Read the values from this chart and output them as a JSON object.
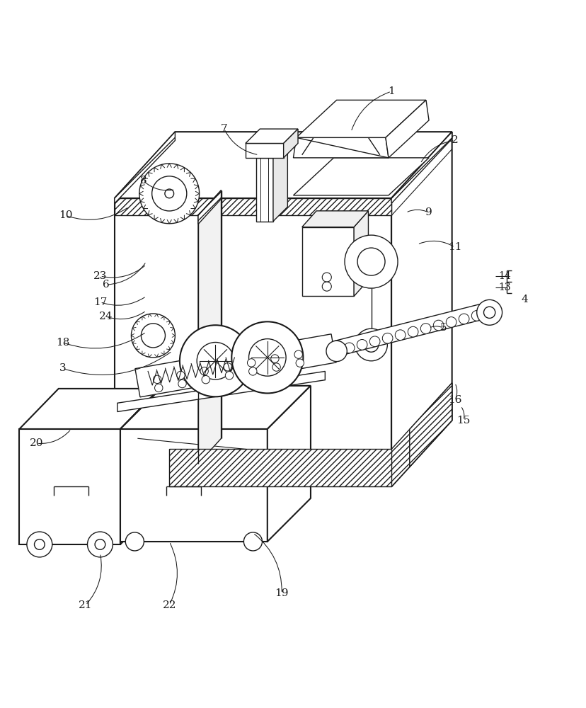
{
  "bg_color": "#ffffff",
  "lc": "#1a1a1a",
  "lw": 1.0,
  "lw2": 1.5,
  "fig_w": 8.29,
  "fig_h": 10.0,
  "label_fs": 11,
  "labels": {
    "1": [
      0.67,
      0.955,
      0.6,
      0.885
    ],
    "2": [
      0.78,
      0.87,
      0.72,
      0.83
    ],
    "3": [
      0.1,
      0.475,
      0.29,
      0.505
    ],
    "4": [
      0.895,
      0.595,
      0.87,
      0.595
    ],
    "5": [
      0.76,
      0.545,
      0.735,
      0.545
    ],
    "6": [
      0.175,
      0.62,
      0.245,
      0.66
    ],
    "7": [
      0.38,
      0.89,
      0.44,
      0.845
    ],
    "8": [
      0.24,
      0.8,
      0.295,
      0.785
    ],
    "9": [
      0.735,
      0.745,
      0.695,
      0.745
    ],
    "10": [
      0.105,
      0.74,
      0.215,
      0.755
    ],
    "11": [
      0.78,
      0.685,
      0.715,
      0.69
    ],
    "13": [
      0.855,
      0.615,
      0.86,
      0.615
    ],
    "14": [
      0.855,
      0.635,
      0.86,
      0.635
    ],
    "15": [
      0.795,
      0.385,
      0.79,
      0.41
    ],
    "16": [
      0.78,
      0.42,
      0.78,
      0.45
    ],
    "17": [
      0.165,
      0.59,
      0.245,
      0.6
    ],
    "18": [
      0.1,
      0.52,
      0.245,
      0.538
    ],
    "19": [
      0.48,
      0.085,
      0.43,
      0.19
    ],
    "20": [
      0.055,
      0.345,
      0.115,
      0.37
    ],
    "21": [
      0.14,
      0.065,
      0.165,
      0.155
    ],
    "22": [
      0.285,
      0.065,
      0.285,
      0.175
    ],
    "23": [
      0.165,
      0.635,
      0.245,
      0.655
    ],
    "24": [
      0.175,
      0.565,
      0.245,
      0.575
    ]
  }
}
